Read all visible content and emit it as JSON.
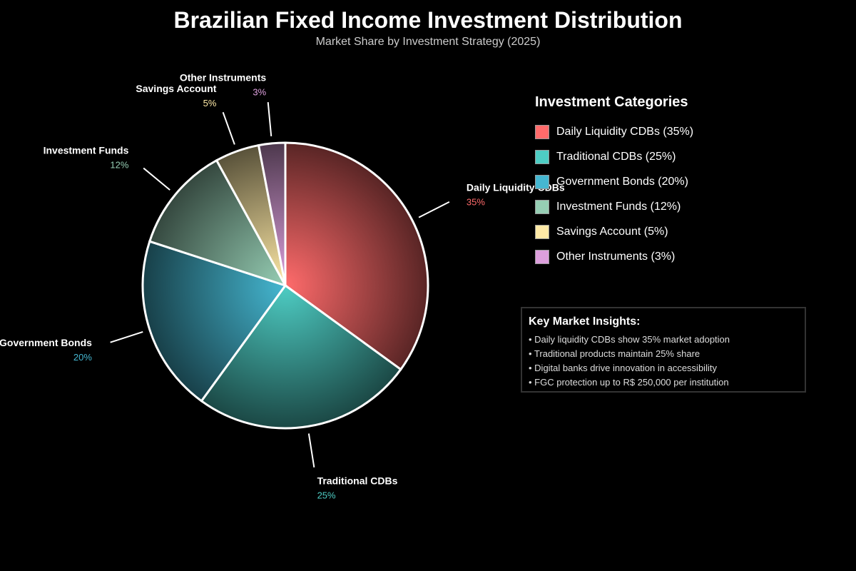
{
  "chart_data": {
    "type": "pie",
    "title": "Brazilian Fixed Income Investment Distribution",
    "subtitle": "Market Share by Investment Strategy (2025)",
    "legend_title": "Investment Categories",
    "legend_placement": "right",
    "slices": [
      {
        "label": "Daily Liquidity CDBs",
        "value": 35,
        "pct_label": "35%",
        "legend": "Daily Liquidity CDBs (35%)",
        "color": "#ff6b6b"
      },
      {
        "label": "Traditional CDBs",
        "value": 25,
        "pct_label": "25%",
        "legend": "Traditional CDBs (25%)",
        "color": "#4ecdc4"
      },
      {
        "label": "Government Bonds",
        "value": 20,
        "pct_label": "20%",
        "legend": "Government Bonds (20%)",
        "color": "#45b7d1"
      },
      {
        "label": "Investment Funds",
        "value": 12,
        "pct_label": "12%",
        "legend": "Investment Funds (12%)",
        "color": "#96ceb4"
      },
      {
        "label": "Savings Account",
        "value": 5,
        "pct_label": "5%",
        "legend": "Savings Account (5%)",
        "color": "#ffeaa7"
      },
      {
        "label": "Other Instruments",
        "value": 3,
        "pct_label": "3%",
        "legend": "Other Instruments (3%)",
        "color": "#dda0dd"
      }
    ]
  },
  "insights": {
    "title": "Key Market Insights:",
    "items": [
      "• Daily liquidity CDBs show 35% market adoption",
      "• Traditional products maintain 25% share",
      "• Digital banks drive innovation in accessibility",
      "• FGC protection up to R$ 250,000 per institution"
    ]
  }
}
